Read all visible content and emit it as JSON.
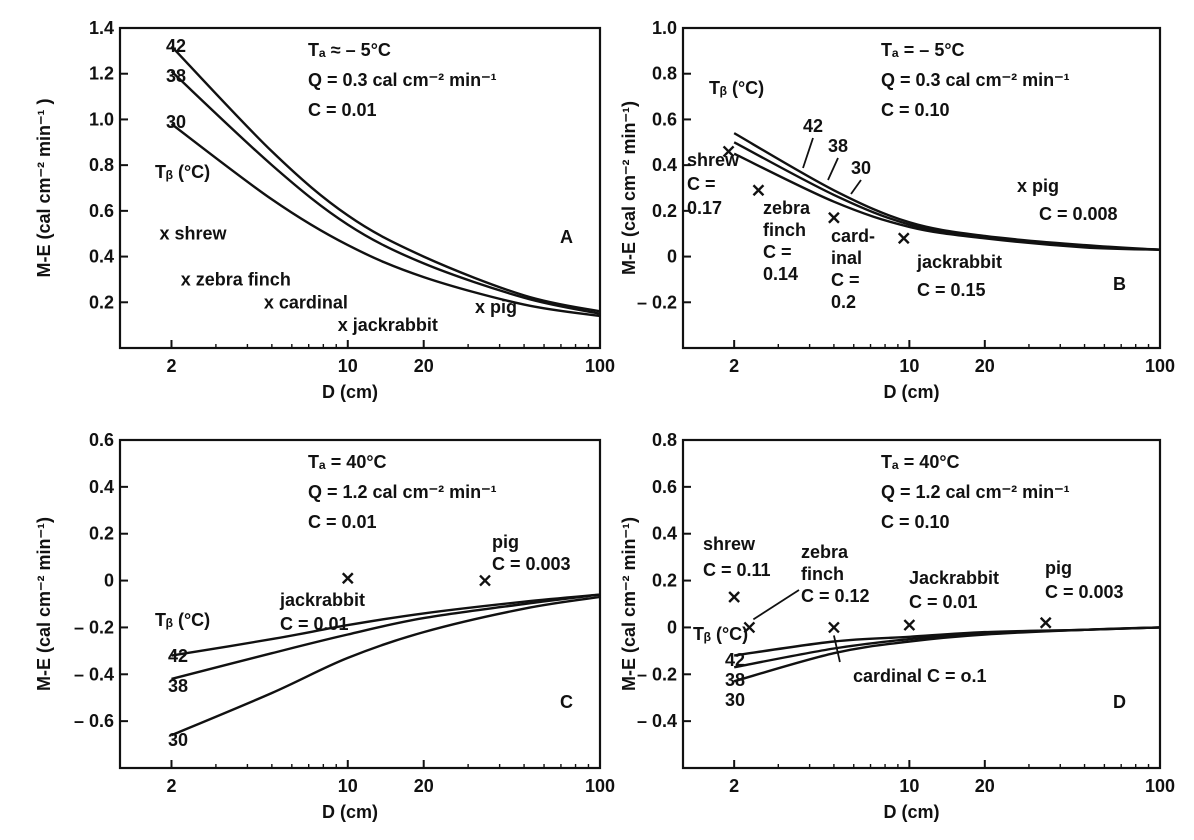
{
  "chart_data": [
    {
      "type": "line",
      "panel": "A",
      "x_scale": "log",
      "xlim": [
        1.25,
        100
      ],
      "ylim": [
        0.0,
        1.4
      ],
      "x_ticks": [
        {
          "v": 2,
          "label": "2"
        },
        {
          "v": 10,
          "label": "10"
        },
        {
          "v": 20,
          "label": "20"
        },
        {
          "v": 100,
          "label": "100"
        }
      ],
      "y_ticks": [
        {
          "v": 0.2,
          "label": "0.2"
        },
        {
          "v": 0.4,
          "label": "0.4"
        },
        {
          "v": 0.6,
          "label": "0.6"
        },
        {
          "v": 0.8,
          "label": "0.8"
        },
        {
          "v": 1.0,
          "label": "1.0"
        },
        {
          "v": 1.2,
          "label": "1.2"
        },
        {
          "v": 1.4,
          "label": "1.4"
        }
      ],
      "xlabel": "D (cm)",
      "ylabel": "M-E (cal cm⁻² min⁻¹ )",
      "conditions": [
        "Tₐ ≈ – 5°C",
        "Q = 0.3 cal cm⁻² min⁻¹",
        "C = 0.01"
      ],
      "tb_label": "Tᵦ (°C)",
      "series": [
        {
          "name": "42",
          "x": [
            2,
            5,
            10,
            20,
            50,
            100
          ],
          "y": [
            1.32,
            0.86,
            0.58,
            0.4,
            0.23,
            0.16
          ]
        },
        {
          "name": "38",
          "x": [
            2,
            5,
            10,
            20,
            50,
            100
          ],
          "y": [
            1.21,
            0.8,
            0.54,
            0.37,
            0.22,
            0.15
          ]
        },
        {
          "name": "30",
          "x": [
            2,
            5,
            10,
            20,
            50,
            100
          ],
          "y": [
            0.98,
            0.65,
            0.45,
            0.31,
            0.19,
            0.14
          ]
        }
      ],
      "points": [
        {
          "label": "shrew",
          "x": 2,
          "y": 0.5
        },
        {
          "label": "zebra finch",
          "x": 2.3,
          "y": 0.3
        },
        {
          "label": "cardinal",
          "x": 5,
          "y": 0.2
        },
        {
          "label": "jackrabbit",
          "x": 10,
          "y": 0.1
        },
        {
          "label": "pig",
          "x": 35,
          "y": 0.18
        }
      ],
      "point_labels": [
        "x shrew",
        "x zebra finch",
        "x cardinal",
        "x jackrabbit",
        "x pig"
      ],
      "panel_label": "A"
    },
    {
      "type": "line",
      "panel": "B",
      "x_scale": "log",
      "xlim": [
        1.25,
        100
      ],
      "ylim": [
        -0.4,
        1.0
      ],
      "x_ticks": [
        {
          "v": 2,
          "label": "2"
        },
        {
          "v": 10,
          "label": "10"
        },
        {
          "v": 20,
          "label": "20"
        },
        {
          "v": 100,
          "label": "100"
        }
      ],
      "y_ticks": [
        {
          "v": -0.2,
          "label": "– 0.2"
        },
        {
          "v": 0,
          "label": "0"
        },
        {
          "v": 0.2,
          "label": "0.2"
        },
        {
          "v": 0.4,
          "label": "0.4"
        },
        {
          "v": 0.6,
          "label": "0.6"
        },
        {
          "v": 0.8,
          "label": "0.8"
        },
        {
          "v": 1.0,
          "label": "1.0"
        }
      ],
      "xlabel": "D (cm)",
      "ylabel": "M-E (cal cm⁻² min⁻¹)",
      "conditions": [
        "Tₐ = – 5°C",
        "Q = 0.3 cal cm⁻² min⁻¹",
        "C = 0.10"
      ],
      "tb_label": "Tᵦ (°C)",
      "series": [
        {
          "name": "42",
          "x": [
            2,
            5,
            10,
            20,
            50,
            100
          ],
          "y": [
            0.54,
            0.29,
            0.15,
            0.09,
            0.05,
            0.03
          ]
        },
        {
          "name": "38",
          "x": [
            2,
            5,
            10,
            20,
            50,
            100
          ],
          "y": [
            0.5,
            0.27,
            0.14,
            0.085,
            0.045,
            0.03
          ]
        },
        {
          "name": "30",
          "x": [
            2,
            5,
            10,
            20,
            50,
            100
          ],
          "y": [
            0.45,
            0.24,
            0.13,
            0.08,
            0.04,
            0.03
          ]
        }
      ],
      "points": [
        {
          "label": "shrew",
          "x": 1.9,
          "y": 0.46,
          "c": "C = 0.17"
        },
        {
          "label": "zebra finch",
          "x": 2.5,
          "y": 0.29,
          "c": "C = 0.14"
        },
        {
          "label": "cardinal",
          "x": 5,
          "y": 0.17,
          "c": "C = 0.2"
        },
        {
          "label": "jackrabbit",
          "x": 9.5,
          "y": 0.08,
          "c": "C = 0.15"
        },
        {
          "label": "pig",
          "x": 35,
          "y": 0.29,
          "c": "C = 0.008"
        }
      ],
      "point_texts": {
        "shrew": [
          "shrew",
          "C =",
          "0.17"
        ],
        "zebra": [
          "zebra",
          "finch",
          "C =",
          "0.14"
        ],
        "cardinal": [
          "card-",
          "inal",
          "C =",
          "0.2"
        ],
        "jackrabbit": [
          "jackrabbit",
          "C = 0.15"
        ],
        "pig": [
          "x pig",
          "C = 0.008"
        ]
      },
      "panel_label": "B"
    },
    {
      "type": "line",
      "panel": "C",
      "x_scale": "log",
      "xlim": [
        1.25,
        100
      ],
      "ylim": [
        -0.8,
        0.6
      ],
      "x_ticks": [
        {
          "v": 2,
          "label": "2"
        },
        {
          "v": 10,
          "label": "10"
        },
        {
          "v": 20,
          "label": "20"
        },
        {
          "v": 100,
          "label": "100"
        }
      ],
      "y_ticks": [
        {
          "v": -0.6,
          "label": "– 0.6"
        },
        {
          "v": -0.4,
          "label": "– 0.4"
        },
        {
          "v": -0.2,
          "label": "– 0.2"
        },
        {
          "v": 0,
          "label": "0"
        },
        {
          "v": 0.2,
          "label": "0.2"
        },
        {
          "v": 0.4,
          "label": "0.4"
        },
        {
          "v": 0.6,
          "label": "0.6"
        }
      ],
      "xlabel": "D (cm)",
      "ylabel": "M-E (cal cm⁻² min⁻¹)",
      "conditions": [
        "Tₐ = 40°C",
        "Q = 1.2 cal cm⁻² min⁻¹",
        "C = 0.01"
      ],
      "tb_label": "Tᵦ (°C)",
      "series": [
        {
          "name": "42",
          "x": [
            2,
            5,
            10,
            20,
            50,
            100
          ],
          "y": [
            -0.32,
            -0.25,
            -0.19,
            -0.14,
            -0.09,
            -0.06
          ]
        },
        {
          "name": "38",
          "x": [
            2,
            5,
            10,
            20,
            50,
            100
          ],
          "y": [
            -0.42,
            -0.31,
            -0.23,
            -0.16,
            -0.1,
            -0.06
          ]
        },
        {
          "name": "30",
          "x": [
            2,
            5,
            10,
            20,
            50,
            100
          ],
          "y": [
            -0.66,
            -0.48,
            -0.33,
            -0.22,
            -0.12,
            -0.07
          ]
        }
      ],
      "points": [
        {
          "label": "jackrabbit",
          "x": 10,
          "y": 0.01,
          "c": "C = 0.01"
        },
        {
          "label": "pig",
          "x": 35,
          "y": 0.0,
          "c": "C = 0.003"
        }
      ],
      "point_texts": {
        "jackrabbit": [
          "jackrabbit",
          "C = 0.01"
        ],
        "pig": [
          "pig",
          "C = 0.003"
        ]
      },
      "panel_label": "C"
    },
    {
      "type": "line",
      "panel": "D",
      "x_scale": "log",
      "xlim": [
        1.25,
        100
      ],
      "ylim": [
        -0.6,
        0.8
      ],
      "x_ticks": [
        {
          "v": 2,
          "label": "2"
        },
        {
          "v": 10,
          "label": "10"
        },
        {
          "v": 20,
          "label": "20"
        },
        {
          "v": 100,
          "label": "100"
        }
      ],
      "y_ticks": [
        {
          "v": -0.4,
          "label": "– 0.4"
        },
        {
          "v": -0.2,
          "label": "– 0.2"
        },
        {
          "v": 0,
          "label": "0"
        },
        {
          "v": 0.2,
          "label": "0.2"
        },
        {
          "v": 0.4,
          "label": "0.4"
        },
        {
          "v": 0.6,
          "label": "0.6"
        },
        {
          "v": 0.8,
          "label": "0.8"
        }
      ],
      "xlabel": "D (cm)",
      "ylabel": "M-E (cal cm⁻² min⁻¹)",
      "conditions": [
        "Tₐ = 40°C",
        "Q = 1.2 cal cm⁻² min⁻¹",
        "C = 0.10"
      ],
      "tb_label": "Tᵦ (°C)",
      "series": [
        {
          "name": "42",
          "x": [
            2,
            5,
            10,
            20,
            50,
            100
          ],
          "y": [
            -0.12,
            -0.06,
            -0.04,
            -0.02,
            -0.01,
            0.0
          ]
        },
        {
          "name": "38",
          "x": [
            2,
            5,
            10,
            20,
            50,
            100
          ],
          "y": [
            -0.17,
            -0.09,
            -0.05,
            -0.025,
            -0.01,
            0.0
          ]
        },
        {
          "name": "30",
          "x": [
            2,
            5,
            10,
            20,
            50,
            100
          ],
          "y": [
            -0.23,
            -0.11,
            -0.06,
            -0.03,
            -0.01,
            0.0
          ]
        }
      ],
      "points": [
        {
          "label": "shrew",
          "x": 2,
          "y": 0.13,
          "c": "C = 0.11"
        },
        {
          "label": "zebra finch",
          "x": 2.3,
          "y": 0.0,
          "c": "C = 0.12"
        },
        {
          "label": "cardinal",
          "x": 5,
          "y": 0.0,
          "c": "C = o.1"
        },
        {
          "label": "jackrabbit",
          "x": 10,
          "y": 0.01,
          "c": "C = 0.01"
        },
        {
          "label": "pig",
          "x": 35,
          "y": 0.02,
          "c": "C = 0.003"
        }
      ],
      "point_texts": {
        "shrew": [
          "shrew",
          "C = 0.11"
        ],
        "zebra": [
          "zebra",
          "finch",
          "C = 0.12"
        ],
        "cardinal": [
          "cardinal  C = o.1"
        ],
        "jackrabbit": [
          "Jackrabbit",
          "C = 0.01"
        ],
        "pig": [
          "pig",
          "C = 0.003"
        ]
      },
      "panel_label": "D"
    }
  ]
}
